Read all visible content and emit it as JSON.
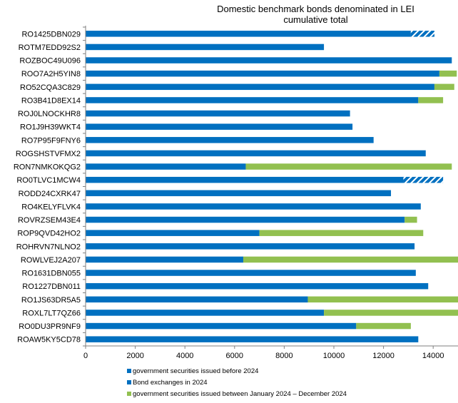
{
  "chart_data": {
    "type": "bar",
    "orientation": "horizontal",
    "stacked": true,
    "title": "Domestic benchmark bonds denominated in LEI",
    "subtitle": "cumulative total",
    "xlim": [
      0,
      15000
    ],
    "xticks": [
      0,
      2000,
      4000,
      6000,
      8000,
      10000,
      12000,
      14000
    ],
    "grid": false,
    "legend_position": "bottom",
    "categories": [
      "RO1425DBN029",
      "ROTM7EDD92S2",
      "ROZBOC49U096",
      "ROO7A2H5YIN8",
      "RO52CQA3C829",
      "RO3B41D8EX14",
      "ROJ0LNOCKHR8",
      "RO1J9H39WKT4",
      "RO7P95F9FNY6",
      "ROGSHSTVFMX2",
      "RON7NMKOKQG2",
      "RO0TLVC1MCW4",
      "RODD24CXRK47",
      "RO4KELYFLVK4",
      "ROVRZSEM43E4",
      "ROP9QVD42HO2",
      "ROHRVN7NLNO2",
      "ROWLVEJ2A207",
      "RO1631DBN055",
      "RO1227DBN011",
      "RO1JS63DR5A5",
      "ROXL7LT7QZ66",
      "RO0DU3PR9NF9",
      "ROAW5KY5CD78"
    ],
    "series": [
      {
        "name": "government securities issued before 2024",
        "color": "#0070c0",
        "values": [
          13100,
          9600,
          14750,
          14250,
          14050,
          13400,
          10650,
          10750,
          11600,
          13700,
          6450,
          12800,
          12300,
          13500,
          12850,
          7000,
          13250,
          6350,
          13300,
          13800,
          8950,
          9600,
          10900,
          13400
        ]
      },
      {
        "name": "Bond exchanges in 2024",
        "color": "#0070c0",
        "pattern": "hatched",
        "values": [
          950,
          0,
          0,
          0,
          0,
          0,
          0,
          0,
          0,
          0,
          0,
          1600,
          0,
          0,
          0,
          0,
          0,
          0,
          0,
          0,
          0,
          0,
          0,
          0
        ]
      },
      {
        "name": "government securities issued between January 2024 – December 2024",
        "color": "#92c050",
        "values": [
          0,
          0,
          0,
          700,
          800,
          1000,
          0,
          0,
          0,
          0,
          8300,
          0,
          0,
          0,
          500,
          6600,
          0,
          8650,
          0,
          0,
          6050,
          5400,
          2200,
          0
        ]
      }
    ]
  }
}
